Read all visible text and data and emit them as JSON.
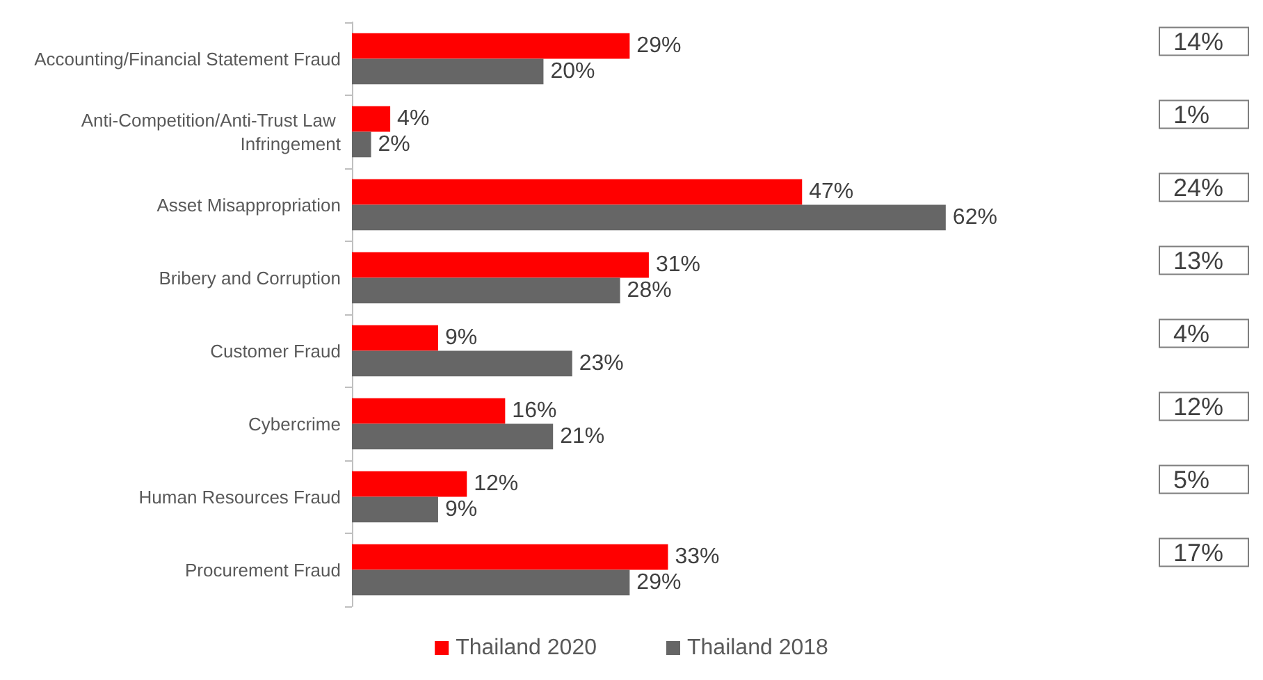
{
  "chart_data": {
    "type": "bar",
    "orientation": "horizontal",
    "categories": [
      "Accounting/Financial Statement Fraud",
      "Anti-Competition/Anti-Trust Law Infringement",
      "Asset Misappropriation",
      "Bribery and Corruption",
      "Customer Fraud",
      "Cybercrime",
      "Human Resources Fraud",
      "Procurement Fraud"
    ],
    "series": [
      {
        "name": "Thailand 2020",
        "color": "#ff0000",
        "values": [
          29,
          4,
          47,
          31,
          9,
          16,
          12,
          33
        ],
        "value_labels": [
          "29%",
          "4%",
          "47%",
          "31%",
          "9%",
          "16%",
          "12%",
          "33%"
        ]
      },
      {
        "name": "Thailand 2018",
        "color": "#666666",
        "values": [
          20,
          2,
          62,
          28,
          23,
          21,
          9,
          29
        ],
        "value_labels": [
          "20%",
          "2%",
          "62%",
          "28%",
          "23%",
          "21%",
          "9%",
          "29%"
        ]
      }
    ],
    "annotations": [
      "14%",
      "1%",
      "24%",
      "13%",
      "4%",
      "12%",
      "5%",
      "17%"
    ],
    "legend": "bottom",
    "grid": false
  }
}
